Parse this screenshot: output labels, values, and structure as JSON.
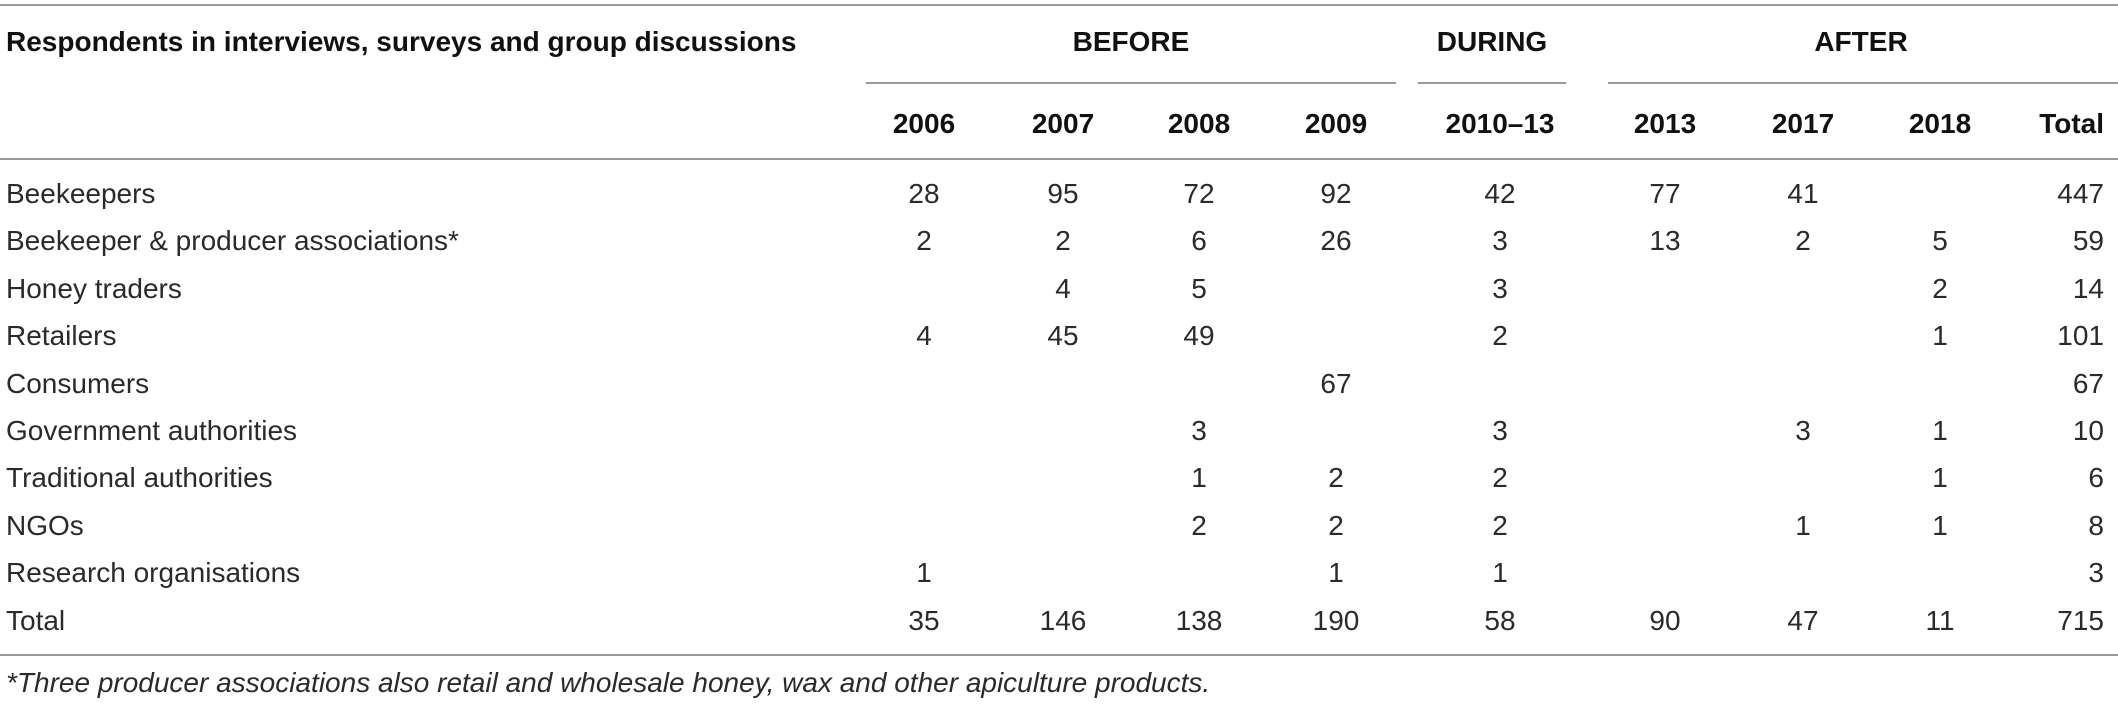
{
  "header": {
    "respondents_label": "Respondents in interviews, surveys and group discussions",
    "groups": [
      "BEFORE",
      "DURING",
      "AFTER"
    ],
    "years": [
      "2006",
      "2007",
      "2008",
      "2009",
      "2010–13",
      "2013",
      "2017",
      "2018",
      "Total"
    ]
  },
  "rows": [
    {
      "label": "Beekeepers",
      "cells": [
        "28",
        "95",
        "72",
        "92",
        "42",
        "77",
        "41",
        "",
        "447"
      ]
    },
    {
      "label": "Beekeeper & producer associations*",
      "cells": [
        "2",
        "2",
        "6",
        "26",
        "3",
        "13",
        "2",
        "5",
        "59"
      ]
    },
    {
      "label": "Honey traders",
      "cells": [
        "",
        "4",
        "5",
        "",
        "3",
        "",
        "",
        "2",
        "14"
      ]
    },
    {
      "label": "Retailers",
      "cells": [
        "4",
        "45",
        "49",
        "",
        "2",
        "",
        "",
        "1",
        "101"
      ]
    },
    {
      "label": "Consumers",
      "cells": [
        "",
        "",
        "",
        "67",
        "",
        "",
        "",
        "",
        "67"
      ]
    },
    {
      "label": "Government authorities",
      "cells": [
        "",
        "",
        "3",
        "",
        "3",
        "",
        "3",
        "1",
        "10"
      ]
    },
    {
      "label": "Traditional authorities",
      "cells": [
        "",
        "",
        "1",
        "2",
        "2",
        "",
        "",
        "1",
        "6"
      ]
    },
    {
      "label": "NGOs",
      "cells": [
        "",
        "",
        "2",
        "2",
        "2",
        "",
        "1",
        "1",
        "8"
      ]
    },
    {
      "label": "Research organisations",
      "cells": [
        "1",
        "",
        "",
        "1",
        "1",
        "",
        "",
        "",
        "3"
      ]
    },
    {
      "label": "Total",
      "cells": [
        "35",
        "146",
        "138",
        "190",
        "58",
        "90",
        "47",
        "11",
        "715"
      ]
    }
  ],
  "footnote": "*Three producer associations also retail and wholesale honey, wax and other apiculture products."
}
